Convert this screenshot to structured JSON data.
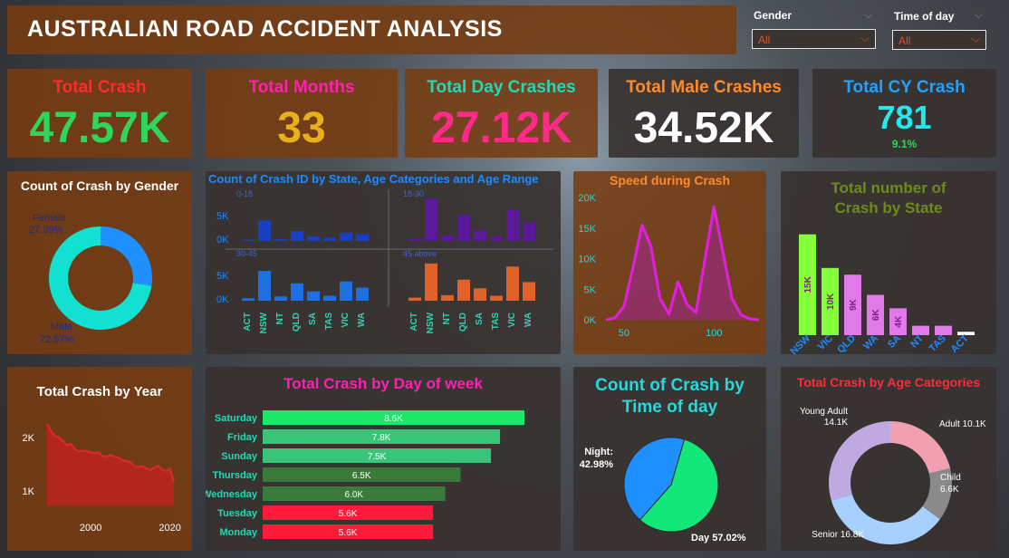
{
  "dashboard": {
    "title": "AUSTRALIAN ROAD ACCIDENT ANALYSIS"
  },
  "filters": {
    "gender_label": "Gender",
    "gender_value": "All",
    "time_label": "Time of day",
    "time_value": "All"
  },
  "kpis": [
    {
      "label": "Total Crash",
      "value": "47.57K",
      "label_color": "#ff2a2a",
      "value_color": "#2fd65a"
    },
    {
      "label": "Total Months",
      "value": "33",
      "label_color": "#ff1fb0",
      "value_color": "#e8b01a"
    },
    {
      "label": "Total Day Crashes",
      "value": "27.12K",
      "label_color": "#23d9b4",
      "value_color": "#ff2a8a"
    },
    {
      "label": "Total Male Crashes",
      "value": "34.52K",
      "label_color": "#ff8a2a",
      "value_color": "#ffffff"
    },
    {
      "label": "Total CY Crash",
      "value": "781",
      "sub": "9.1%",
      "label_color": "#1fa3ff",
      "value_color": "#23e8ee",
      "sub_color": "#2fd65a"
    }
  ],
  "chart_data": [
    {
      "id": "gender",
      "type": "pie",
      "title": "Count of Crash by Gender",
      "categories": [
        "Female",
        "Male"
      ],
      "values": [
        27.39,
        72.57
      ],
      "labels": [
        "27.39%",
        "72.57%"
      ],
      "colors": [
        "#1e90ff",
        "#12e0d0"
      ]
    },
    {
      "id": "state_age",
      "type": "bar",
      "title": "Count of Crash ID by State, Age Categories and Age Range",
      "categories": [
        "ACT",
        "NSW",
        "NT",
        "QLD",
        "SA",
        "TAS",
        "VIC",
        "WA"
      ],
      "yticks": [
        "5K",
        "0K"
      ],
      "panels": [
        {
          "name": "0-18",
          "color": "#1a3ec4",
          "values": [
            200,
            3300,
            300,
            1600,
            700,
            500,
            1300,
            1100
          ]
        },
        {
          "name": "18-30",
          "color": "#5a1a9a",
          "values": [
            300,
            6800,
            900,
            4200,
            1700,
            700,
            5100,
            3000
          ]
        },
        {
          "name": "30-45",
          "color": "#1e6fe0",
          "values": [
            400,
            4800,
            700,
            2800,
            1500,
            800,
            3100,
            2100
          ]
        },
        {
          "name": "45 above",
          "color": "#e0622a",
          "values": [
            500,
            6000,
            900,
            3400,
            2000,
            800,
            5500,
            3000
          ]
        }
      ]
    },
    {
      "id": "speed",
      "type": "area",
      "title": "Speed during Crash",
      "x": [
        40,
        45,
        50,
        55,
        60,
        65,
        70,
        75,
        80,
        85,
        90,
        95,
        100,
        105,
        110,
        115,
        120,
        125
      ],
      "values": [
        0,
        300,
        2200,
        8500,
        15500,
        12000,
        3500,
        900,
        6200,
        2500,
        1200,
        10000,
        18500,
        11000,
        3500,
        800,
        150,
        0
      ],
      "yticks": [
        "20K",
        "15K",
        "10K",
        "5K",
        "0K"
      ],
      "xticks": [
        "50",
        "100"
      ],
      "ylim": [
        0,
        20000
      ],
      "color": "#e020e0"
    },
    {
      "id": "state_total",
      "type": "bar",
      "title": "Total number of Crash by State",
      "categories": [
        "NSW",
        "VIC",
        "QLD",
        "WA",
        "SA",
        "NT",
        "TAS",
        "ACT"
      ],
      "values": [
        15000,
        10000,
        9000,
        6000,
        4000,
        1400,
        1400,
        500
      ],
      "labels": [
        "15K",
        "10K",
        "9K",
        "6K",
        "4K",
        "",
        "",
        ""
      ],
      "colors": [
        "#84ff3a",
        "#84ff3a",
        "#e07ae8",
        "#e07ae8",
        "#e07ae8",
        "#e07ae8",
        "#e07ae8",
        "#ffffff"
      ]
    },
    {
      "id": "year",
      "type": "area",
      "title": "Total Crash by Year",
      "x_range": [
        1989,
        2021
      ],
      "values": [
        2700,
        2480,
        2300,
        2260,
        2150,
        2000,
        2050,
        1880,
        1790,
        1820,
        1810,
        1760,
        1740,
        1760,
        1640,
        1610,
        1680,
        1620,
        1590,
        1500,
        1480,
        1440,
        1310,
        1280,
        1310,
        1230,
        1170,
        1260,
        1320,
        1180,
        1150,
        1220,
        800
      ],
      "yticks": [
        "2K",
        "1K"
      ],
      "xticks": [
        "2000",
        "2020"
      ],
      "color": "#e02a2a"
    },
    {
      "id": "dow",
      "type": "bar",
      "title": "Total Crash by Day of week",
      "categories": [
        "Saturday",
        "Friday",
        "Sunday",
        "Thursday",
        "Wednesday",
        "Tuesday",
        "Monday"
      ],
      "values": [
        8600,
        7800,
        7500,
        6500,
        6000,
        5600,
        5600
      ],
      "labels": [
        "8.6K",
        "7.8K",
        "7.5K",
        "6.5K",
        "6.0K",
        "5.6K",
        "5.6K"
      ],
      "colors": [
        "#1ee86a",
        "#3ac47a",
        "#3ac47a",
        "#3a7a3a",
        "#3a7a3a",
        "#ff1a3a",
        "#ff1a3a"
      ]
    },
    {
      "id": "tod",
      "type": "pie",
      "title": "Count of Crash by Time of day",
      "categories": [
        "Night",
        "Day"
      ],
      "values": [
        42.98,
        57.02
      ],
      "labels": [
        "42.98%",
        "57.02%"
      ],
      "colors": [
        "#1e90ff",
        "#12e87a"
      ]
    },
    {
      "id": "age",
      "type": "pie",
      "title": "Total Crash by Age Categories",
      "categories": [
        "Adult",
        "Child",
        "Senior",
        "Young Adult"
      ],
      "values": [
        10.1,
        6.6,
        16.8,
        14.1
      ],
      "labels": [
        "10.1K",
        "6.6K",
        "16.8K",
        "14.1K"
      ],
      "colors": [
        "#f0a0b0",
        "#8a8a8a",
        "#a8d0ff",
        "#c0a8e0"
      ]
    }
  ]
}
